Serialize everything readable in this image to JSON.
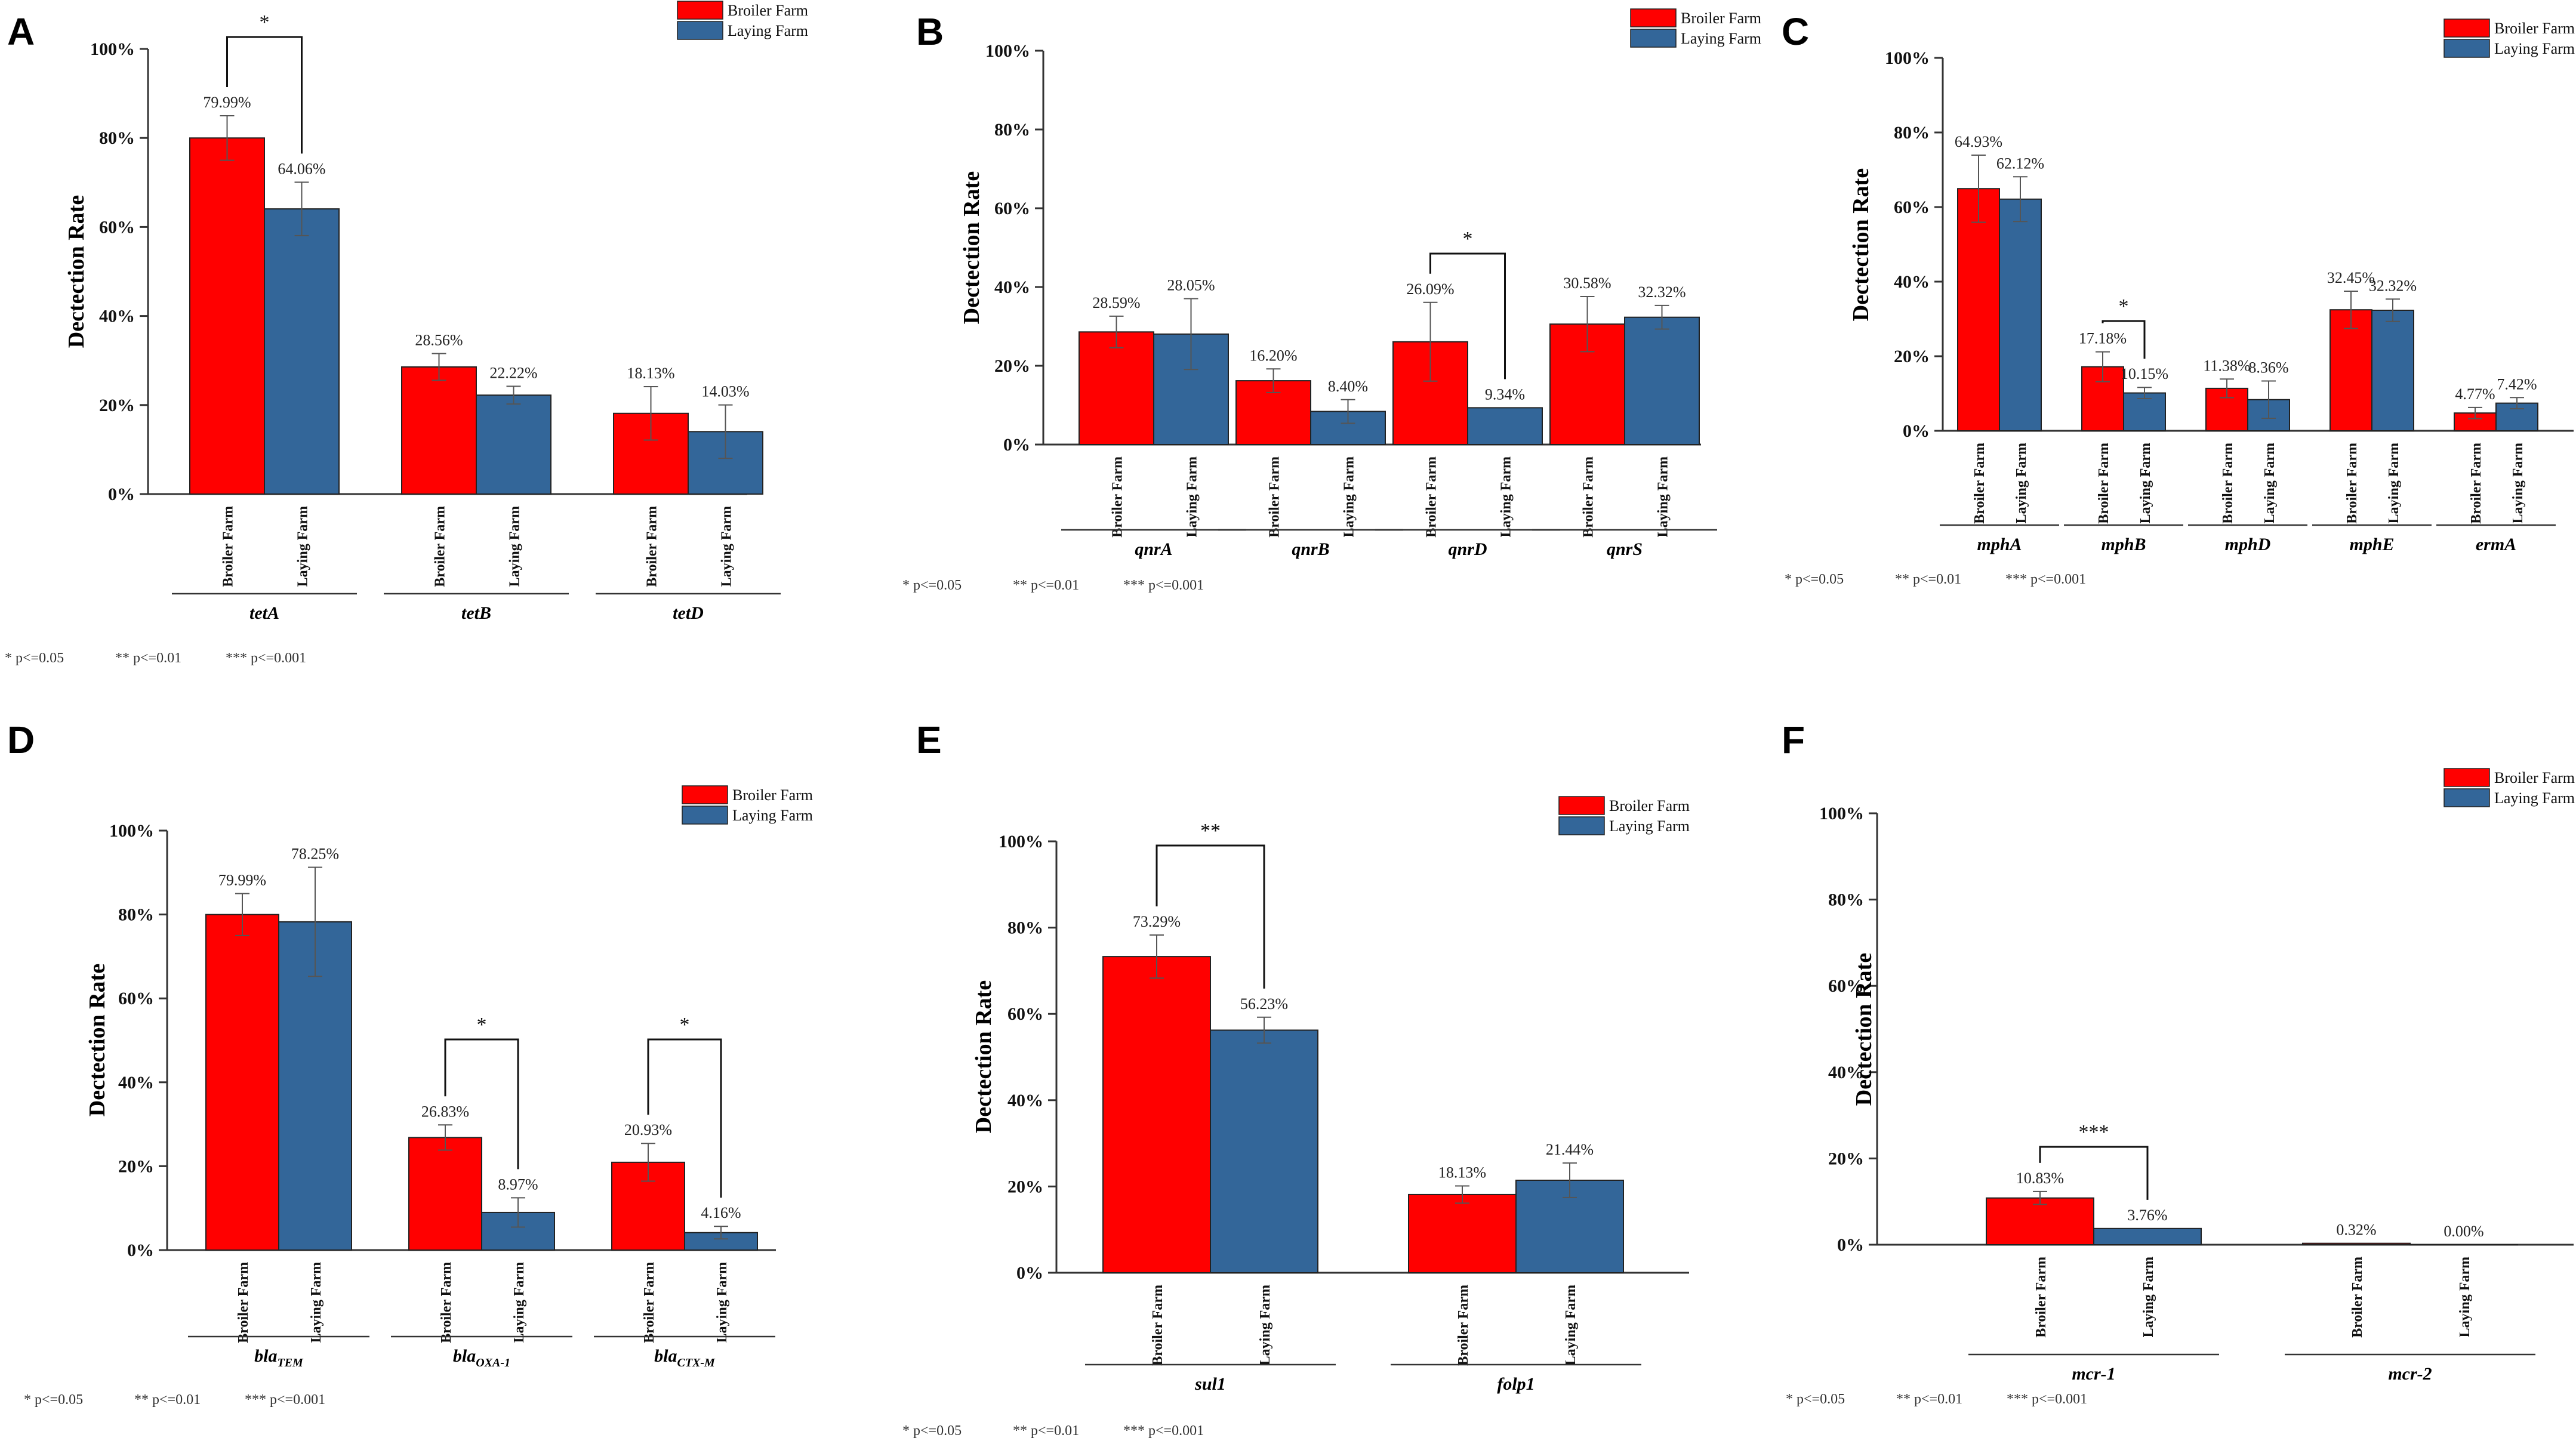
{
  "figure": {
    "legend_labels": [
      "Broiler Farm",
      "Laying Farm"
    ],
    "significance_note": [
      "* p<=0.05",
      "** p<=0.01",
      "*** p<=0.001"
    ],
    "colors": {
      "broiler": "#ff0000",
      "laying": "#336699"
    }
  },
  "chart_data": [
    {
      "panel": "A",
      "type": "bar",
      "ylabel": "Dectection Rate",
      "ylim": [
        0,
        100
      ],
      "y_ticks": [
        "0%",
        "20%",
        "40%",
        "60%",
        "80%",
        "100%"
      ],
      "series_names": [
        "Broiler Farm",
        "Laying Farm"
      ],
      "groups": [
        {
          "gene": "tetA",
          "sub": "",
          "values": [
            79.99,
            64.06
          ],
          "labels": [
            "79.99%",
            "64.06%"
          ],
          "errors": [
            5,
            6
          ]
        },
        {
          "gene": "tetB",
          "sub": "",
          "values": [
            28.56,
            22.22
          ],
          "labels": [
            "28.56%",
            "22.22%"
          ],
          "errors": [
            3,
            2
          ]
        },
        {
          "gene": "tetD",
          "sub": "",
          "values": [
            18.13,
            14.03
          ],
          "labels": [
            "18.13%",
            "14.03%"
          ],
          "errors": [
            6,
            6
          ]
        }
      ],
      "significance": [
        {
          "group": 0,
          "label": "*"
        }
      ]
    },
    {
      "panel": "B",
      "type": "bar",
      "ylabel": "Dectection Rate",
      "ylim": [
        0,
        100
      ],
      "y_ticks": [
        "0%",
        "20%",
        "40%",
        "60%",
        "80%",
        "100%"
      ],
      "series_names": [
        "Broiler Farm",
        "Laying Farm"
      ],
      "groups": [
        {
          "gene": "qnrA",
          "sub": "",
          "values": [
            28.59,
            28.05
          ],
          "labels": [
            "28.59%",
            "28.05%"
          ],
          "errors": [
            4,
            9
          ]
        },
        {
          "gene": "qnrB",
          "sub": "",
          "values": [
            16.2,
            8.4
          ],
          "labels": [
            "16.20%",
            "8.40%"
          ],
          "errors": [
            3,
            3
          ]
        },
        {
          "gene": "qnrD",
          "sub": "",
          "values": [
            26.09,
            9.34
          ],
          "labels": [
            "26.09%",
            "9.34%"
          ],
          "errors": [
            10,
            0
          ]
        },
        {
          "gene": "qnrS",
          "sub": "",
          "values": [
            30.58,
            32.32
          ],
          "labels": [
            "30.58%",
            "32.32%"
          ],
          "errors": [
            7,
            3
          ]
        }
      ],
      "significance": [
        {
          "group": 2,
          "label": "*"
        }
      ]
    },
    {
      "panel": "C",
      "type": "bar",
      "ylabel": "Dectection Rate",
      "ylim": [
        0,
        100
      ],
      "y_ticks": [
        "0%",
        "20%",
        "40%",
        "60%",
        "80%",
        "100%"
      ],
      "series_names": [
        "Broiler Farm",
        "Laying Farm"
      ],
      "groups": [
        {
          "gene": "mphA",
          "sub": "",
          "values": [
            64.93,
            62.12
          ],
          "labels": [
            "64.93%",
            "62.12%"
          ],
          "errors": [
            9,
            6
          ]
        },
        {
          "gene": "mphB",
          "sub": "",
          "values": [
            17.18,
            10.15
          ],
          "labels": [
            "17.18%",
            "10.15%"
          ],
          "errors": [
            4,
            1.5
          ]
        },
        {
          "gene": "mphD",
          "sub": "",
          "values": [
            11.38,
            8.36
          ],
          "labels": [
            "11.38%",
            "8.36%"
          ],
          "errors": [
            2.5,
            5
          ]
        },
        {
          "gene": "mphE",
          "sub": "",
          "values": [
            32.45,
            32.32
          ],
          "labels": [
            "32.45%",
            "32.32%"
          ],
          "errors": [
            5,
            3
          ]
        },
        {
          "gene": "ermA",
          "sub": "",
          "values": [
            4.77,
            7.42
          ],
          "labels": [
            "4.77%",
            "7.42%"
          ],
          "errors": [
            1.5,
            1.5
          ]
        }
      ],
      "significance": [
        {
          "group": 1,
          "label": "*"
        }
      ]
    },
    {
      "panel": "D",
      "type": "bar",
      "ylabel": "Dectection Rate",
      "ylim": [
        0,
        100
      ],
      "y_ticks": [
        "0%",
        "20%",
        "40%",
        "60%",
        "80%",
        "100%"
      ],
      "series_names": [
        "Broiler Farm",
        "Laying Farm"
      ],
      "groups": [
        {
          "gene": "bla",
          "sub": "TEM",
          "values": [
            79.99,
            78.25
          ],
          "labels": [
            "79.99%",
            "78.25%"
          ],
          "errors": [
            5,
            13
          ]
        },
        {
          "gene": "bla",
          "sub": "OXA-1",
          "values": [
            26.83,
            8.97
          ],
          "labels": [
            "26.83%",
            "8.97%"
          ],
          "errors": [
            3,
            3.5
          ]
        },
        {
          "gene": "bla",
          "sub": "CTX-M",
          "values": [
            20.93,
            4.16
          ],
          "labels": [
            "20.93%",
            "4.16%"
          ],
          "errors": [
            4.5,
            1.5
          ]
        }
      ],
      "significance": [
        {
          "group": 1,
          "label": "*"
        },
        {
          "group": 2,
          "label": "*"
        }
      ]
    },
    {
      "panel": "E",
      "type": "bar",
      "ylabel": "Dectection Rate",
      "ylim": [
        0,
        100
      ],
      "y_ticks": [
        "0%",
        "20%",
        "40%",
        "60%",
        "80%",
        "100%"
      ],
      "series_names": [
        "Broiler Farm",
        "Laying Farm"
      ],
      "groups": [
        {
          "gene": "sul1",
          "sub": "",
          "values": [
            73.29,
            56.23
          ],
          "labels": [
            "73.29%",
            "56.23%"
          ],
          "errors": [
            5,
            3
          ]
        },
        {
          "gene": "folp1",
          "sub": "",
          "values": [
            18.13,
            21.44
          ],
          "labels": [
            "18.13%",
            "21.44%"
          ],
          "errors": [
            2,
            4
          ]
        }
      ],
      "significance": [
        {
          "group": 0,
          "label": "**"
        }
      ]
    },
    {
      "panel": "F",
      "type": "bar",
      "ylabel": "Dectection Rate",
      "ylim": [
        0,
        100
      ],
      "y_ticks": [
        "0%",
        "20%",
        "40%",
        "60%",
        "80%",
        "100%"
      ],
      "series_names": [
        "Broiler Farm",
        "Laying Farm"
      ],
      "groups": [
        {
          "gene": "mcr-1",
          "sub": "",
          "values": [
            10.83,
            3.76
          ],
          "labels": [
            "10.83%",
            "3.76%"
          ],
          "errors": [
            1.5,
            0
          ]
        },
        {
          "gene": "mcr-2",
          "sub": "",
          "values": [
            0.32,
            0.0
          ],
          "labels": [
            "0.32%",
            "0.00%"
          ],
          "errors": [
            0,
            0
          ]
        }
      ],
      "significance": [
        {
          "group": 0,
          "label": "***"
        }
      ]
    }
  ]
}
